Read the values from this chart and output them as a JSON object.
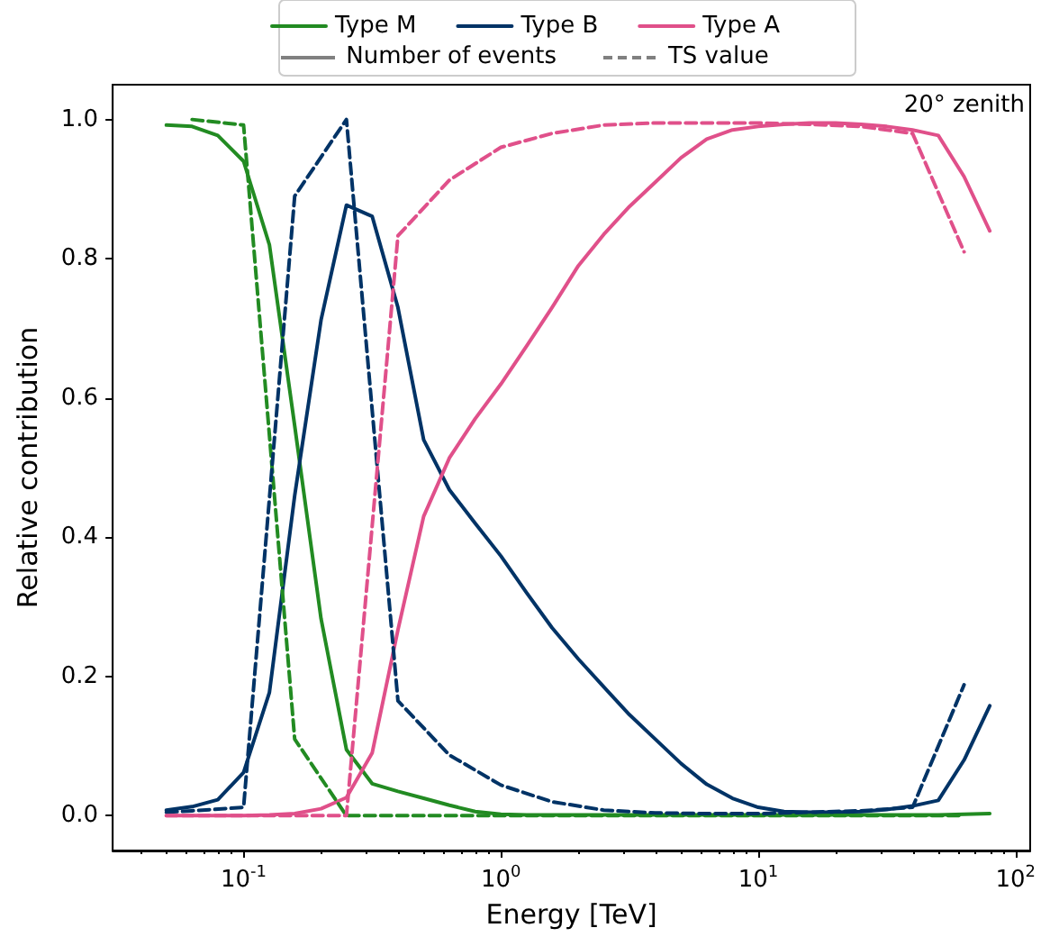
{
  "chart_data": {
    "type": "line",
    "xlabel": "Energy [TeV]",
    "ylabel": "Relative contribution",
    "log": "x",
    "grid": false,
    "legend": "top",
    "marker": "none",
    "annotations": [
      "20° zenith",
      "Number of events",
      "TS value"
    ],
    "xlim": [
      0.031,
      114
    ],
    "ylim": [
      -0.05,
      1.05
    ],
    "xticks": [
      {
        "value": 0.1,
        "label": "10$^{-1}$"
      },
      {
        "value": 1,
        "label": "10$^{0}$"
      },
      {
        "value": 10,
        "label": "10$^{1}$"
      },
      {
        "value": 100,
        "label": "10$^{2}$"
      }
    ],
    "yticks": [
      {
        "value": 0,
        "label": "0.0"
      },
      {
        "value": 0.2,
        "label": "0.2"
      },
      {
        "value": 0.4,
        "label": "0.4"
      },
      {
        "value": 0.6,
        "label": "0.6"
      },
      {
        "value": 0.8,
        "label": "0.8"
      },
      {
        "value": 1,
        "label": "1.0"
      }
    ],
    "x": [
      0.0501,
      0.0631,
      0.0794,
      0.1,
      0.126,
      0.158,
      0.2,
      0.251,
      0.316,
      0.398,
      0.501,
      0.631,
      0.794,
      1,
      1.26,
      1.58,
      2,
      2.51,
      3.16,
      3.98,
      5.01,
      6.31,
      7.94,
      10,
      12.6,
      15.8,
      20,
      25.1,
      31.6,
      39.8,
      50.1,
      63.1,
      79.4
    ],
    "series": [
      {
        "name": "Type M",
        "color": "#228b22",
        "line_style": "solid",
        "values": [
          0.992,
          0.99,
          0.977,
          0.94,
          0.82,
          0.56,
          0.283,
          0.095,
          0.046,
          0.035,
          0.025,
          0.015,
          0.006,
          0.002,
          0.001,
          0.001,
          0.001,
          0.001,
          0.001,
          0.001,
          0.001,
          0.001,
          0.001,
          0.001,
          0.001,
          0.001,
          0.001,
          0.001,
          0.001,
          0.001,
          0.001,
          0.002,
          0.003
        ]
      },
      {
        "name": "Type B",
        "color": "#003366",
        "line_style": "solid",
        "values": [
          0.008,
          0.013,
          0.023,
          0.062,
          0.177,
          0.46,
          0.712,
          0.877,
          0.861,
          0.73,
          0.54,
          0.468,
          0.42,
          0.373,
          0.32,
          0.27,
          0.225,
          0.185,
          0.145,
          0.11,
          0.075,
          0.045,
          0.025,
          0.012,
          0.006,
          0.005,
          0.005,
          0.006,
          0.009,
          0.014,
          0.022,
          0.08,
          0.158
        ]
      },
      {
        "name": "Type A",
        "color": "#e0508a",
        "line_style": "solid",
        "values": [
          0,
          0,
          0,
          0,
          0.001,
          0.003,
          0.01,
          0.026,
          0.09,
          0.267,
          0.43,
          0.514,
          0.57,
          0.62,
          0.675,
          0.73,
          0.79,
          0.835,
          0.875,
          0.91,
          0.945,
          0.972,
          0.985,
          0.99,
          0.993,
          0.995,
          0.995,
          0.993,
          0.99,
          0.985,
          0.977,
          0.918,
          0.84
        ]
      },
      {
        "color": "#228b22",
        "line_style": "dashed",
        "x": [
          0.0631,
          0.1,
          0.158,
          0.251,
          0.398,
          0.631,
          1,
          1.58,
          2.51,
          3.98,
          6.31,
          10,
          15.8,
          25.1,
          39.8,
          63.1
        ],
        "values": [
          1.0,
          0.992,
          0.11,
          0,
          0,
          0,
          0,
          0,
          0,
          0,
          0,
          0,
          0,
          0,
          0,
          0
        ]
      },
      {
        "color": "#003366",
        "line_style": "dashed",
        "x": [
          0.0501,
          0.0631,
          0.1,
          0.158,
          0.251,
          0.398,
          0.631,
          1,
          1.58,
          2.51,
          3.98,
          6.31,
          10,
          15.8,
          25.1,
          39.8,
          63.1
        ],
        "values": [
          0.005,
          0.007,
          0.012,
          0.89,
          1.0,
          0.165,
          0.087,
          0.044,
          0.02,
          0.008,
          0.004,
          0.003,
          0.003,
          0.005,
          0.007,
          0.012,
          0.188
        ]
      },
      {
        "color": "#e0508a",
        "line_style": "dashed",
        "x": [
          0.0501,
          0.0631,
          0.1,
          0.158,
          0.251,
          0.398,
          0.631,
          1,
          1.58,
          2.51,
          3.98,
          6.31,
          10,
          15.8,
          25.1,
          39.8,
          63.1
        ],
        "values": [
          0,
          0,
          0,
          0,
          0,
          0.833,
          0.913,
          0.96,
          0.98,
          0.992,
          0.995,
          0.995,
          0.995,
          0.993,
          0.99,
          0.98,
          0.81
        ]
      }
    ]
  }
}
